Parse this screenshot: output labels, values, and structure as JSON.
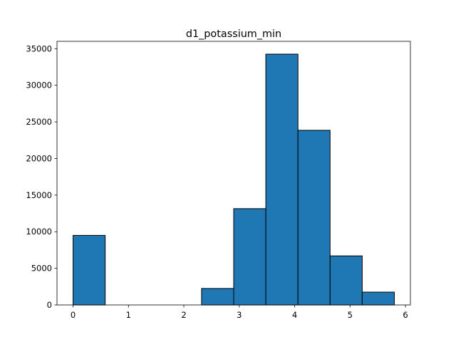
{
  "chart_data": {
    "type": "bar",
    "title": "d1_potassium_min",
    "xlabel": "",
    "ylabel": "",
    "xlim": [
      -0.29,
      6.09
    ],
    "ylim": [
      0,
      36000
    ],
    "bin_edges": [
      0.0,
      0.58,
      1.16,
      1.74,
      2.32,
      2.9,
      3.48,
      4.06,
      4.64,
      5.22,
      5.8
    ],
    "values": [
      9500,
      0,
      0,
      0,
      2250,
      13150,
      34250,
      23850,
      6700,
      1750
    ],
    "x_ticks": [
      0,
      1,
      2,
      3,
      4,
      5,
      6
    ],
    "x_tick_labels": [
      "0",
      "1",
      "2",
      "3",
      "4",
      "5",
      "6"
    ],
    "y_ticks": [
      0,
      5000,
      10000,
      15000,
      20000,
      25000,
      30000,
      35000
    ],
    "y_tick_labels": [
      "0",
      "5000",
      "10000",
      "15000",
      "20000",
      "25000",
      "30000",
      "35000"
    ],
    "bar_color": "#1f77b4",
    "edge_color": "#000000",
    "grid": false
  }
}
